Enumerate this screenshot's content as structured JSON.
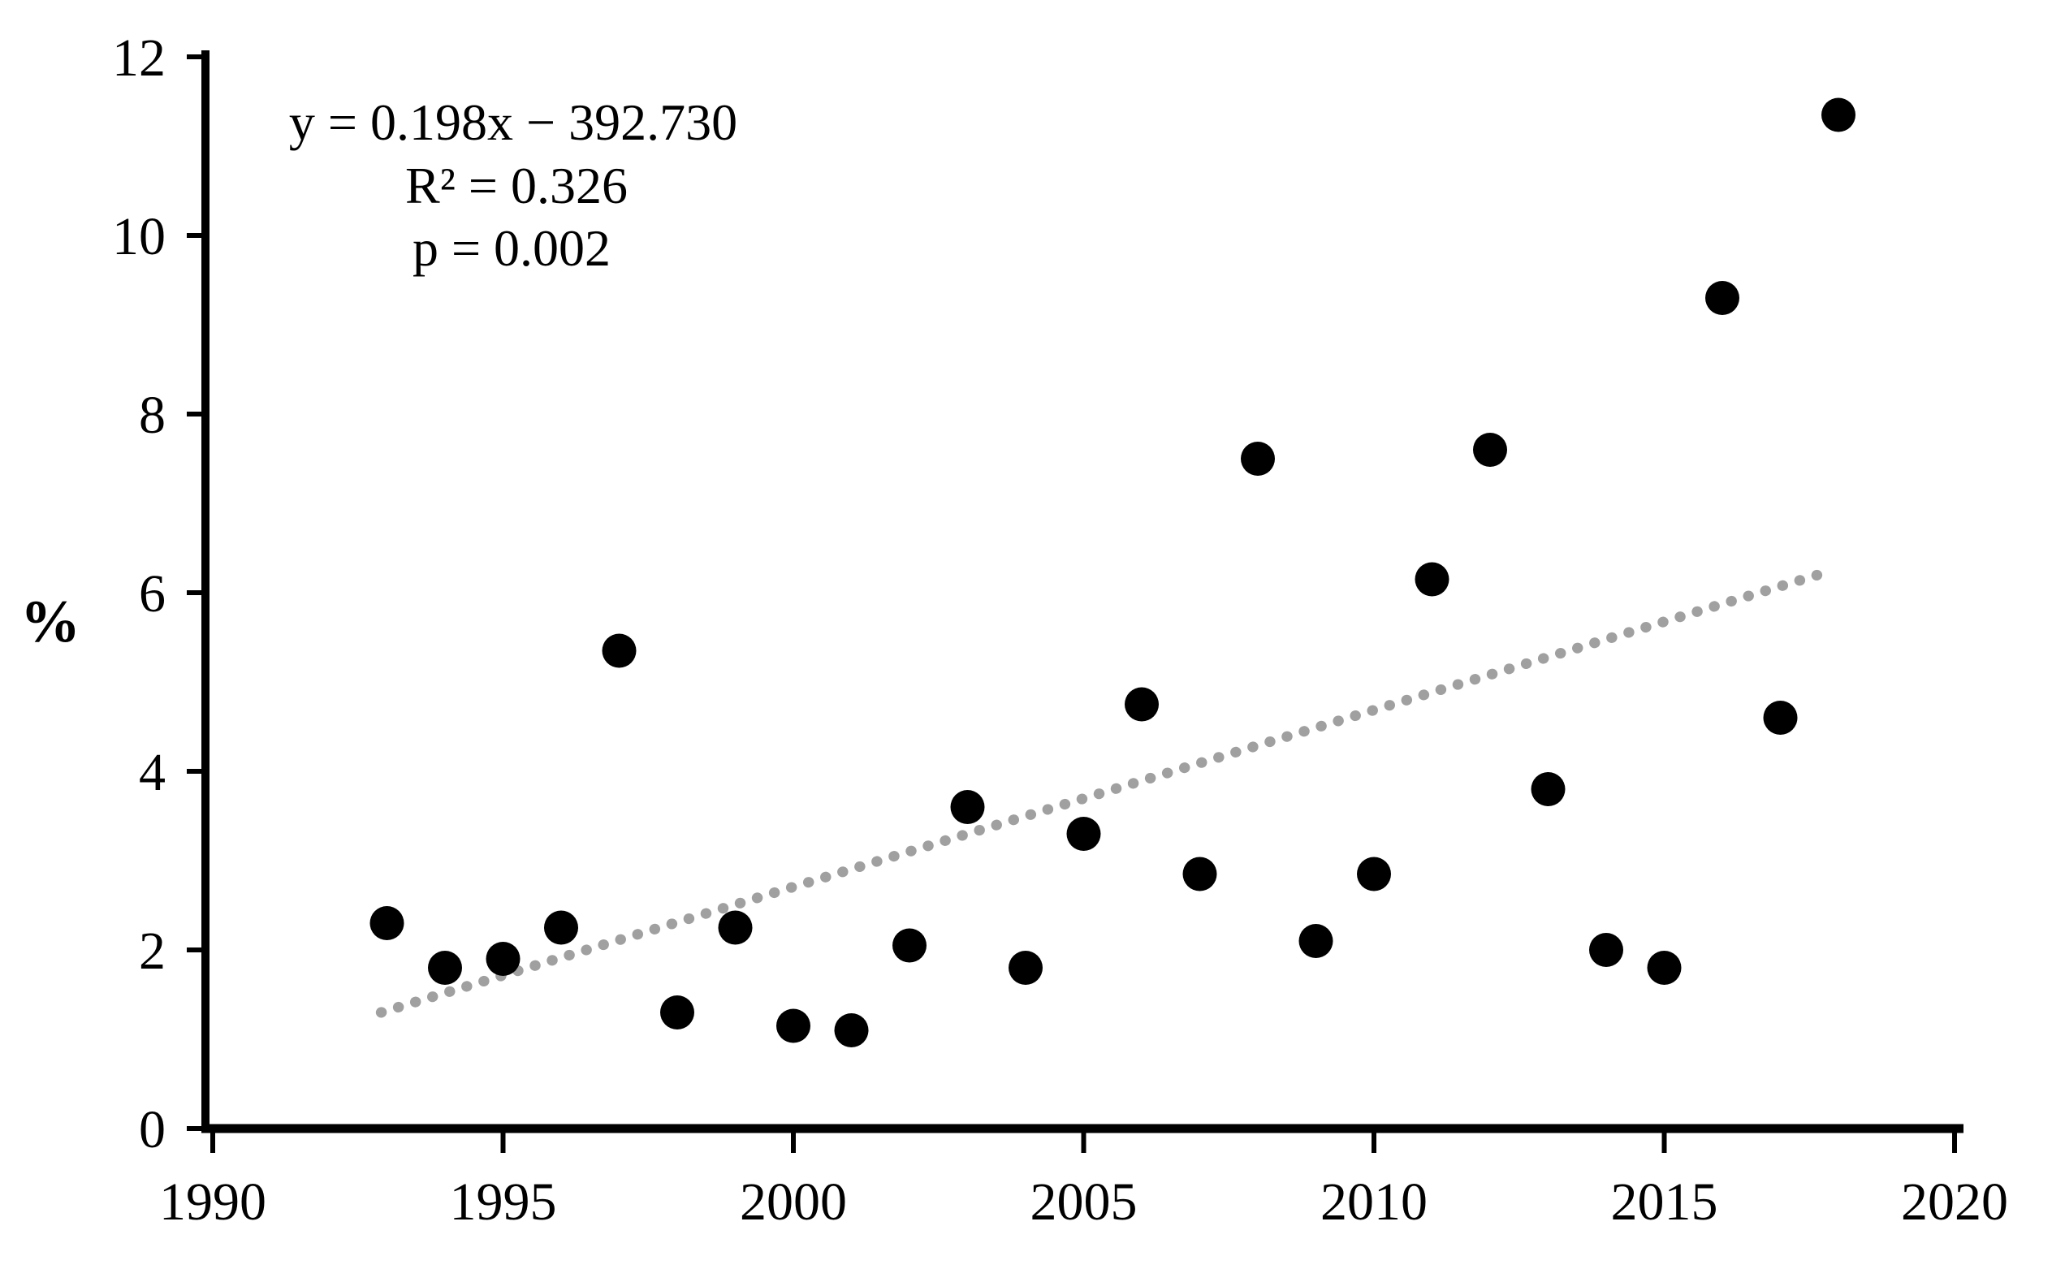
{
  "figure": {
    "ylabel": "%",
    "annotation": {
      "equation": "y = 0.198x − 392.730",
      "r_squared": "R² = 0.326",
      "p_value": "p = 0.002"
    },
    "colors": {
      "point": "#000000",
      "trendline": "#a0a0a0",
      "axis": "#000000"
    }
  },
  "chart_data": {
    "type": "scatter",
    "title": "",
    "xlabel": "",
    "ylabel": "%",
    "x": [
      1993,
      1994,
      1995,
      1996,
      1997,
      1998,
      1999,
      2000,
      2001,
      2002,
      2003,
      2004,
      2005,
      2006,
      2007,
      2008,
      2009,
      2010,
      2011,
      2012,
      2013,
      2014,
      2015,
      2016,
      2017,
      2018
    ],
    "y": [
      2.3,
      1.8,
      1.9,
      2.25,
      5.35,
      1.3,
      2.25,
      1.15,
      1.1,
      2.05,
      3.6,
      1.8,
      3.3,
      4.75,
      2.85,
      7.5,
      2.1,
      2.85,
      6.15,
      7.6,
      3.8,
      2.0,
      1.8,
      9.3,
      4.6,
      11.35
    ],
    "x_ticks": [
      1990,
      1995,
      2000,
      2005,
      2010,
      2015,
      2020
    ],
    "y_ticks": [
      0,
      2,
      4,
      6,
      8,
      10,
      12
    ],
    "xlim": [
      1990,
      2020
    ],
    "ylim": [
      0,
      12
    ],
    "grid": false,
    "legend": null,
    "trendline": {
      "style": "dotted",
      "color": "#a0a0a0",
      "x1": 1992.9,
      "y1": 1.3,
      "x2": 2017.9,
      "y2": 6.25,
      "equation": "y = 0.198x − 392.730",
      "r2": 0.326,
      "p": 0.002
    }
  }
}
